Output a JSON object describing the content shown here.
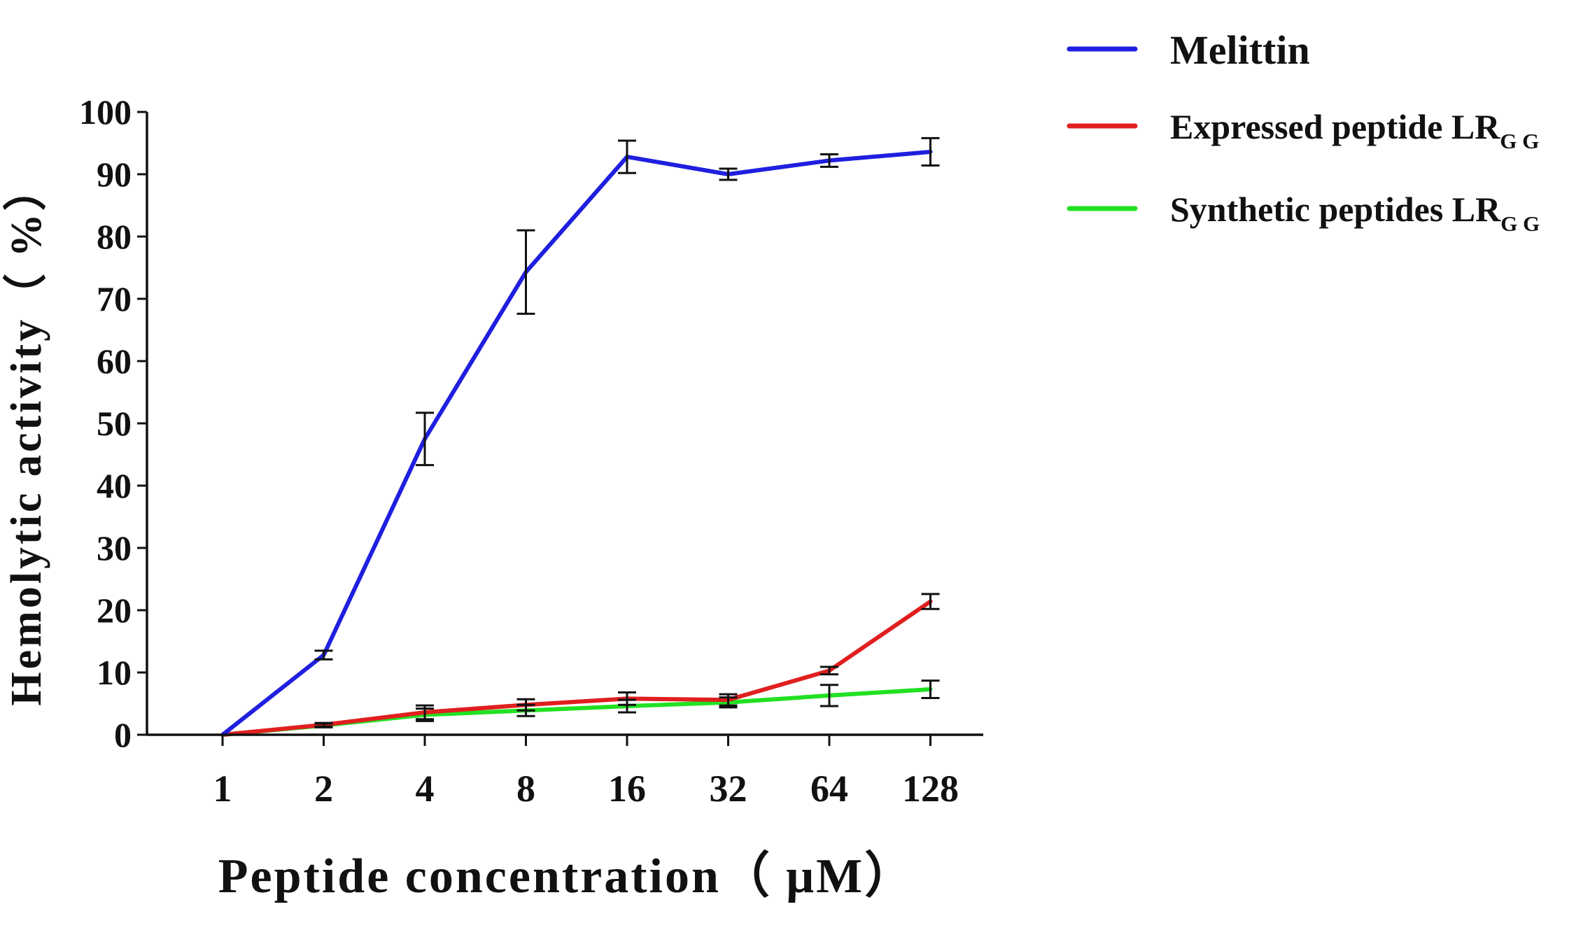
{
  "chart_data": {
    "type": "line",
    "xlabel": "Peptide concentration（ μM）",
    "ylabel": "Hemolytic activity（ %）",
    "x": [
      "1",
      "2",
      "4",
      "8",
      "16",
      "32",
      "64",
      "128"
    ],
    "ylim": [
      0,
      100
    ],
    "yticks": [
      0,
      10,
      20,
      30,
      40,
      50,
      60,
      70,
      80,
      90,
      100
    ],
    "grid": false,
    "legend_position": "top-right",
    "series": [
      {
        "name": "Melittin",
        "color": "#1f1fe0",
        "values": [
          0,
          12.8,
          47.5,
          74.3,
          92.8,
          90.0,
          92.2,
          93.6
        ],
        "errors": [
          0,
          0.7,
          4.2,
          6.7,
          2.6,
          0.9,
          1.0,
          2.2
        ]
      },
      {
        "name": "Expressed peptide LR",
        "name_subscript": "G G",
        "color": "#e01f1f",
        "values": [
          0,
          1.6,
          3.6,
          4.8,
          5.8,
          5.6,
          10.3,
          21.4
        ],
        "errors": [
          0,
          0.3,
          1.1,
          0.9,
          1.0,
          0.9,
          0.6,
          1.2
        ]
      },
      {
        "name": "Synthetic peptides LR",
        "name_subscript": "G G",
        "color": "#22e022",
        "values": [
          0,
          1.5,
          3.2,
          3.9,
          4.6,
          5.2,
          6.3,
          7.3
        ],
        "errors": [
          0,
          0.3,
          1.0,
          0.9,
          1.0,
          0.8,
          1.7,
          1.4
        ]
      }
    ]
  }
}
